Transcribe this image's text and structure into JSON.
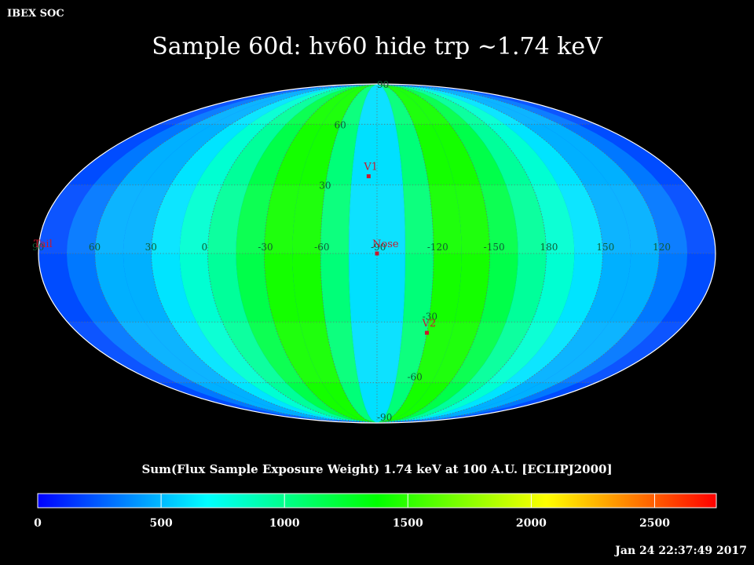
{
  "header": {
    "org": "IBEX SOC"
  },
  "title": "Sample 60d: hv60 hide trp ~1.74 keV",
  "timestamp": "Jan 24 22:37:49 2017",
  "colorbar": {
    "title": "Sum(Flux Sample Exposure Weight)  1.74 keV at 100 A.U. [ECLIPJ2000]",
    "ticks": [
      "0",
      "500",
      "1000",
      "1500",
      "2000",
      "2500"
    ],
    "range": [
      0,
      2750
    ],
    "colors": [
      "#0000ff",
      "#00ffff",
      "#00ff00",
      "#ffff00",
      "#ff0000"
    ]
  },
  "map": {
    "projection": "mollweide",
    "center_longitude": -90,
    "latitude_labels": [
      "90",
      "60",
      "30",
      "-30",
      "-60",
      "-90"
    ],
    "longitude_labels": [
      "60",
      "30",
      "0",
      "-30",
      "-60",
      "-90",
      "-120",
      "-150",
      "180",
      "150",
      "120",
      "90"
    ],
    "markers": [
      {
        "name": "V1",
        "lon": -85,
        "lat": 34
      },
      {
        "name": "Nose",
        "lon": -90,
        "lat": 0
      },
      {
        "name": "V2",
        "lon": -120,
        "lat": -35
      },
      {
        "name": "Tail",
        "lon": 90,
        "lat": 0
      }
    ],
    "band_colors": [
      "#004cff",
      "#0078ff",
      "#00b0ff",
      "#00e4ff",
      "#00ffd2",
      "#00ff9a",
      "#00ff4a",
      "#14ff00",
      "#00ff78",
      "#00e0ff"
    ]
  }
}
